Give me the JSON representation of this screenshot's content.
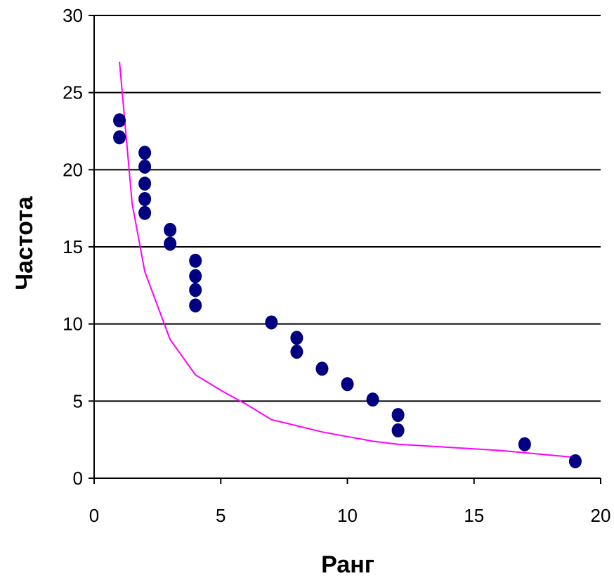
{
  "chart_data": {
    "type": "scatter",
    "title": "",
    "xlabel": "Ранг",
    "ylabel": "Частота",
    "xlim": [
      0,
      20
    ],
    "ylim": [
      0,
      30
    ],
    "x_ticks": [
      0,
      5,
      10,
      15,
      20
    ],
    "y_ticks": [
      0,
      5,
      10,
      15,
      20,
      25,
      30
    ],
    "grid": "horizontal",
    "legend": "none",
    "series": [
      {
        "kind": "scatter",
        "color": "#000080",
        "points": [
          [
            1,
            23.2
          ],
          [
            1,
            22.1
          ],
          [
            2,
            21.1
          ],
          [
            2,
            20.2
          ],
          [
            2,
            19.1
          ],
          [
            2,
            18.1
          ],
          [
            2,
            17.2
          ],
          [
            3,
            16.1
          ],
          [
            3,
            15.2
          ],
          [
            4,
            14.1
          ],
          [
            4,
            13.1
          ],
          [
            4,
            12.2
          ],
          [
            4,
            11.2
          ],
          [
            7,
            10.1
          ],
          [
            8,
            9.1
          ],
          [
            8,
            8.2
          ],
          [
            9,
            7.1
          ],
          [
            10,
            6.1
          ],
          [
            11,
            5.1
          ],
          [
            12,
            4.1
          ],
          [
            12,
            3.1
          ],
          [
            17,
            2.2
          ],
          [
            19,
            1.1
          ]
        ]
      },
      {
        "kind": "line",
        "color": "#ff00ff",
        "points": [
          [
            1,
            27.0
          ],
          [
            1.5,
            17.8
          ],
          [
            2,
            13.4
          ],
          [
            3,
            9.0
          ],
          [
            4,
            6.7
          ],
          [
            5,
            5.7
          ],
          [
            6,
            4.8
          ],
          [
            7,
            3.8
          ],
          [
            8,
            3.4
          ],
          [
            9,
            3.0
          ],
          [
            10,
            2.7
          ],
          [
            11,
            2.4
          ],
          [
            12,
            2.2
          ],
          [
            13,
            2.1
          ],
          [
            14,
            2.0
          ],
          [
            15,
            1.9
          ],
          [
            16,
            1.8
          ],
          [
            17,
            1.65
          ],
          [
            18,
            1.5
          ],
          [
            19,
            1.35
          ]
        ]
      }
    ]
  }
}
